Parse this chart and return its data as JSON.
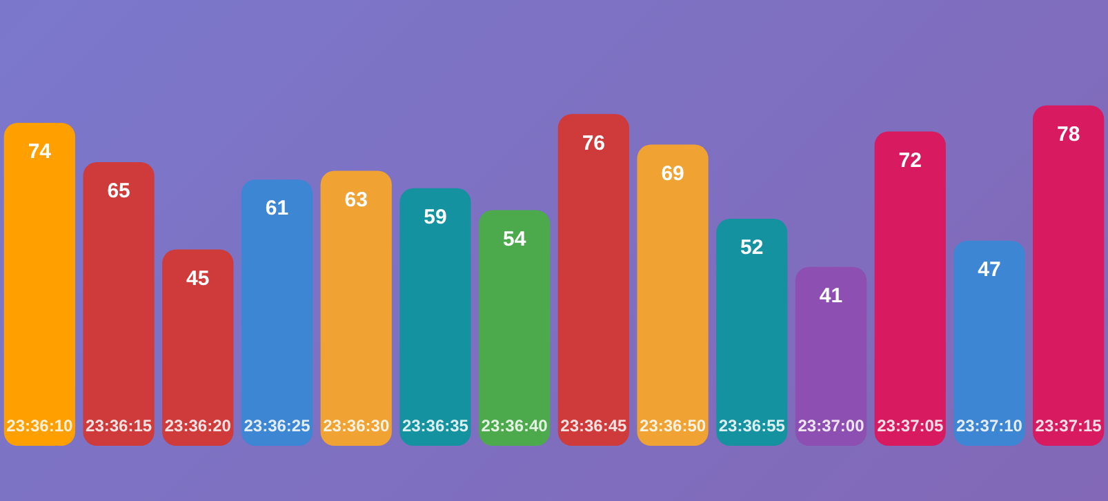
{
  "chart_data": {
    "type": "bar",
    "categories": [
      "23:36:10",
      "23:36:15",
      "23:36:20",
      "23:36:25",
      "23:36:30",
      "23:36:35",
      "23:36:40",
      "23:36:45",
      "23:36:50",
      "23:36:55",
      "23:37:00",
      "23:37:05",
      "23:37:10",
      "23:37:15"
    ],
    "values": [
      74,
      65,
      45,
      61,
      63,
      59,
      54,
      76,
      69,
      52,
      41,
      72,
      47,
      78
    ],
    "colors": [
      "#ffa000",
      "#cf3a3a",
      "#cf3a3a",
      "#3d86d4",
      "#f0a232",
      "#15929f",
      "#4caa4c",
      "#cf3a3a",
      "#f0a232",
      "#15929f",
      "#8e4fb2",
      "#d81b60",
      "#3d86d4",
      "#d81b60"
    ],
    "data_labels": true
  }
}
